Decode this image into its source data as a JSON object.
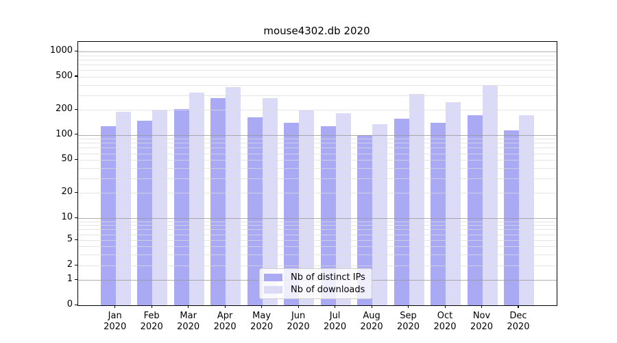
{
  "chart_data": {
    "type": "bar",
    "title": "mouse4302.db 2020",
    "categories": [
      "Jan 2020",
      "Feb 2020",
      "Mar 2020",
      "Apr 2020",
      "May 2020",
      "Jun 2020",
      "Jul 2020",
      "Aug 2020",
      "Sep 2020",
      "Oct 2020",
      "Nov 2020",
      "Dec 2020"
    ],
    "series": [
      {
        "name": "Nb of distinct IPs",
        "color": "#a9a9f4",
        "values": [
          127,
          148,
          204,
          278,
          163,
          139,
          128,
          99,
          158,
          141,
          172,
          114
        ]
      },
      {
        "name": "Nb of downloads",
        "color": "#dbdbf8",
        "values": [
          188,
          200,
          320,
          376,
          276,
          197,
          182,
          135,
          311,
          246,
          395,
          171
        ]
      }
    ],
    "xlabel": "",
    "ylabel": "",
    "yscale": "symlog",
    "yticks": [
      0,
      1,
      2,
      5,
      10,
      20,
      50,
      100,
      200,
      500,
      1000
    ],
    "ylim": [
      0,
      1330
    ],
    "grid": "both",
    "grid_over_bars": true,
    "legend_position": "lower center"
  },
  "colors": {
    "major_grid": "#999999",
    "minor_grid": "#dcdcdc",
    "spine": "#000000",
    "legend_border": "#cccccc"
  }
}
